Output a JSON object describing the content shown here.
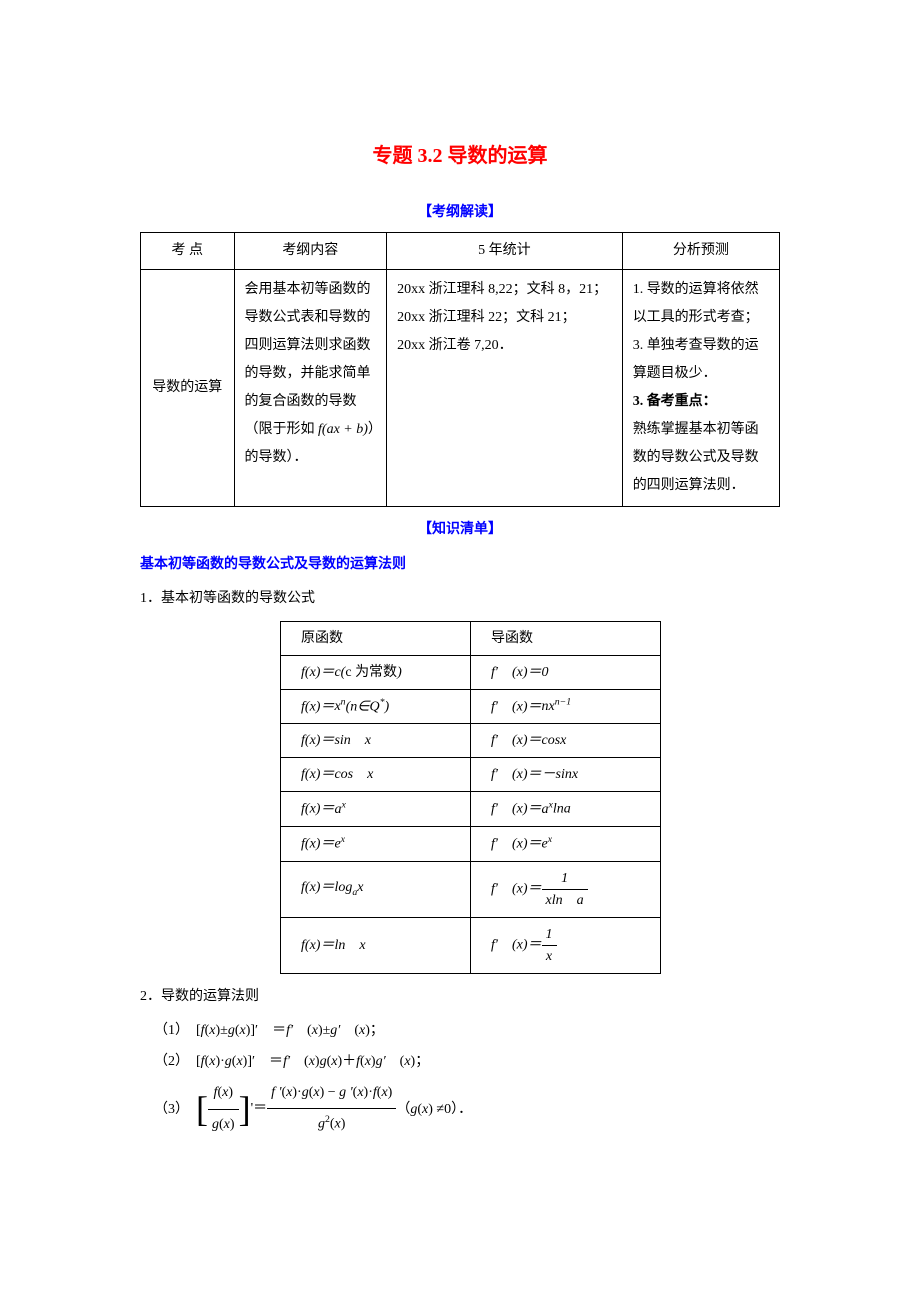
{
  "title": "专题 3.2 导数的运算",
  "sections": {
    "exam_outline": "【考纲解读】",
    "knowledge_list": "【知识清单】"
  },
  "table1": {
    "headers": [
      "考  点",
      "考纲内容",
      "5 年统计",
      "分析预测"
    ],
    "row": {
      "topic": "导数的运算",
      "content_pre": "会用基本初等函数的导数公式表和导数的四则运算法则求函数的导数，并能求简单的复合函数的导数（限于形如 ",
      "content_formula": "f(ax + b)",
      "content_post": "）的导数）．",
      "stats": [
        "20xx 浙江理科 8,22；文科 8，21；",
        "20xx 浙江理科 22；文科 21；",
        "20xx 浙江卷 7,20．"
      ],
      "analysis": [
        {
          "text": "1. 导数的运算将依然以工具的形式考查；",
          "bold": false
        },
        {
          "text": "3. 单独考查导数的运算题目极少．",
          "bold": false
        },
        {
          "text": "3. 备考重点：",
          "bold": true
        },
        {
          "text": "  熟练掌握基本初等函数的导数公式及导数的四则运算法则．",
          "bold": false
        }
      ]
    }
  },
  "subsection_title": "基本初等函数的导数公式及导数的运算法则",
  "list1_title": "1．基本初等函数的导数公式",
  "table2": {
    "header_a": "原函数",
    "header_b": "导函数",
    "rows": [
      {
        "a_html": "<span class='math-i'>f</span>(<span class='math-i'>x</span>)＝<span class='math-i'>c</span>(<span class='math-i cn'>c</span> <span class='cn'>为常数</span>)",
        "b_html": "<span class='math-i'>f′</span>　(<span class='math-i'>x</span>)＝0"
      },
      {
        "a_html": "<span class='math-i'>f</span>(<span class='math-i'>x</span>)＝<span class='math-i'>x<span class='sup'>n</span></span>(<span class='math-i'>n</span>∈Q<span class='sup'>*</span>)",
        "b_html": "<span class='math-i'>f′</span>　(<span class='math-i'>x</span>)＝<span class='math-i'>nx<span class='sup'>n−1</span></span>"
      },
      {
        "a_html": "<span class='math-i'>f</span>(<span class='math-i'>x</span>)＝sin　<span class='math-i'>x</span>",
        "b_html": "<span class='math-i'>f′</span>　(<span class='math-i'>x</span>)＝cos<span class='math-i'>x</span>"
      },
      {
        "a_html": "<span class='math-i'>f</span>(<span class='math-i'>x</span>)＝cos　<span class='math-i'>x</span>",
        "b_html": "<span class='math-i'>f′</span>　(<span class='math-i'>x</span>)＝－sin<span class='math-i'>x</span>"
      },
      {
        "a_html": "<span class='math-i'>f</span>(<span class='math-i'>x</span>)＝<span class='math-i'>a<span class='sup'>x</span></span>",
        "b_html": "<span class='math-i'>f′</span>　(<span class='math-i'>x</span>)＝<span class='math-i'>a<span class='sup'>x</span></span>ln<span class='math-i'>a</span>"
      },
      {
        "a_html": "<span class='math-i'>f</span>(<span class='math-i'>x</span>)＝e<span class='sup math-i'>x</span>",
        "b_html": "<span class='math-i'>f′</span>　(<span class='math-i'>x</span>)＝e<span class='sup math-i'>x</span>"
      },
      {
        "a_html": "<span class='math-i'>f</span>(<span class='math-i'>x</span>)＝log<span class='sub math-i'>a</span><span class='math-i'>x</span>",
        "b_html": "<span class='math-i'>f′</span>　(<span class='math-i'>x</span>)＝<span class='frac'><span class='num'>1</span><span class='den'><span class='math-i'>x</span>ln　<span class='math-i'>a</span></span></span>"
      },
      {
        "a_html": "<span class='math-i'>f</span>(<span class='math-i'>x</span>)＝ln　<span class='math-i'>x</span>",
        "b_html": "<span class='math-i'>f′</span>　(<span class='math-i'>x</span>)＝<span class='frac'><span class='num'>1</span><span class='den'><span class='math-i'>x</span></span></span>"
      }
    ]
  },
  "list2_title": "2．导数的运算法则",
  "rules": {
    "r1": "（1）　[<span class='math-i'>f</span>(<span class='math-i'>x</span>)±<span class='math-i'>g</span>(<span class='math-i'>x</span>)]′　＝<span class='math-i'>f′</span>　(<span class='math-i'>x</span>)±<span class='math-i'>g′</span>　(<span class='math-i'>x</span>)；",
    "r2": "（2）　[<span class='math-i'>f</span>(<span class='math-i'>x</span>)·<span class='math-i'>g</span>(<span class='math-i'>x</span>)]′　＝<span class='math-i'>f′</span>　(<span class='math-i'>x</span>)<span class='math-i'>g</span>(<span class='math-i'>x</span>)＋<span class='math-i'>f</span>(<span class='math-i'>x</span>)<span class='math-i'>g′</span>　(<span class='math-i'>x</span>)；",
    "r3_pre": "（3）　",
    "r3_mid_num": "<span class='math-i'>f</span>(<span class='math-i'>x</span>)",
    "r3_mid_den": "<span class='math-i'>g</span>(<span class='math-i'>x</span>)",
    "r3_eq": "'＝",
    "r3_right_num": "<span class='math-i'>f '</span>(<span class='math-i'>x</span>)·<span class='math-i'>g</span>(<span class='math-i'>x</span>) − <span class='math-i'>g '</span>(<span class='math-i'>x</span>)·<span class='math-i'>f</span>(<span class='math-i'>x</span>)",
    "r3_right_den": "<span class='math-i'>g</span><span class='sup'>2</span>(<span class='math-i'>x</span>)",
    "r3_post": "（<span class='math-i'>g</span>(<span class='math-i'>x</span>) ≠0）．"
  },
  "colors": {
    "title": "#ff0000",
    "header": "#0000ff",
    "text": "#000000",
    "border": "#000000",
    "background": "#ffffff"
  },
  "typography": {
    "title_fontsize": 20,
    "body_fontsize": 14,
    "section_header_fontsize": 14
  }
}
